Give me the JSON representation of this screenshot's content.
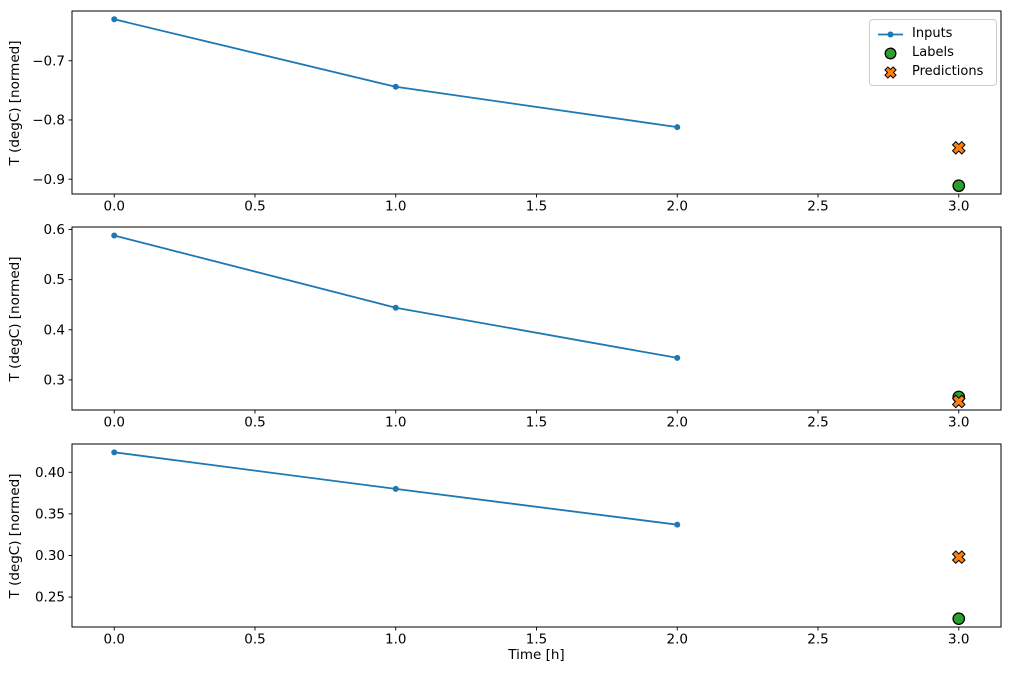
{
  "figure": {
    "background": "#ffffff",
    "xlabel": "Time [h]",
    "ylabel": "T (degC) [normed]",
    "xticks": [
      0.0,
      0.5,
      1.0,
      1.5,
      2.0,
      2.5,
      3.0
    ],
    "xticklabels": [
      "0.0",
      "0.5",
      "1.0",
      "1.5",
      "2.0",
      "2.5",
      "3.0"
    ],
    "colors": {
      "inputs": "#1f77b4",
      "labels": "#2ca02c",
      "predictions": "#ff7f0e",
      "marker_edge": "#000000",
      "legend_border": "#cccccc",
      "spine": "#000000"
    }
  },
  "legend": {
    "entries": [
      {
        "label": "Inputs",
        "marker": "line-dot",
        "color": "#1f77b4"
      },
      {
        "label": "Labels",
        "marker": "circle",
        "color": "#2ca02c"
      },
      {
        "label": "Predictions",
        "marker": "x",
        "color": "#ff7f0e"
      }
    ]
  },
  "chart_data": [
    {
      "type": "line",
      "title": "",
      "xlabel": "",
      "ylabel": "T (degC) [normed]",
      "xlim": [
        -0.15,
        3.15
      ],
      "ylim": [
        -0.925,
        -0.616
      ],
      "yticks": [
        -0.7,
        -0.8,
        -0.9
      ],
      "yticklabels": [
        "−0.7",
        "−0.8",
        "−0.9"
      ],
      "legend_visible": true,
      "series": [
        {
          "name": "Inputs",
          "style": "line-dot",
          "color": "#1f77b4",
          "x": [
            0,
            1,
            2
          ],
          "y": [
            -0.63,
            -0.744,
            -0.812
          ]
        },
        {
          "name": "Labels",
          "style": "circle",
          "color": "#2ca02c",
          "x": [
            3
          ],
          "y": [
            -0.911
          ]
        },
        {
          "name": "Predictions",
          "style": "x",
          "color": "#ff7f0e",
          "x": [
            3
          ],
          "y": [
            -0.847
          ]
        }
      ]
    },
    {
      "type": "line",
      "title": "",
      "xlabel": "",
      "ylabel": "T (degC) [normed]",
      "xlim": [
        -0.15,
        3.15
      ],
      "ylim": [
        0.24,
        0.605
      ],
      "yticks": [
        0.3,
        0.4,
        0.5,
        0.6
      ],
      "yticklabels": [
        "0.3",
        "0.4",
        "0.5",
        "0.6"
      ],
      "legend_visible": false,
      "series": [
        {
          "name": "Inputs",
          "style": "line-dot",
          "color": "#1f77b4",
          "x": [
            0,
            1,
            2
          ],
          "y": [
            0.588,
            0.444,
            0.344
          ]
        },
        {
          "name": "Labels",
          "style": "circle",
          "color": "#2ca02c",
          "x": [
            3
          ],
          "y": [
            0.266
          ]
        },
        {
          "name": "Predictions",
          "style": "x",
          "color": "#ff7f0e",
          "x": [
            3
          ],
          "y": [
            0.257
          ]
        }
      ]
    },
    {
      "type": "line",
      "title": "",
      "xlabel": "Time [h]",
      "ylabel": "T (degC) [normed]",
      "xlim": [
        -0.15,
        3.15
      ],
      "ylim": [
        0.214,
        0.434
      ],
      "yticks": [
        0.25,
        0.3,
        0.35,
        0.4
      ],
      "yticklabels": [
        "0.25",
        "0.30",
        "0.35",
        "0.40"
      ],
      "legend_visible": false,
      "series": [
        {
          "name": "Inputs",
          "style": "line-dot",
          "color": "#1f77b4",
          "x": [
            0,
            1,
            2
          ],
          "y": [
            0.424,
            0.38,
            0.337
          ]
        },
        {
          "name": "Labels",
          "style": "circle",
          "color": "#2ca02c",
          "x": [
            3
          ],
          "y": [
            0.224
          ]
        },
        {
          "name": "Predictions",
          "style": "x",
          "color": "#ff7f0e",
          "x": [
            3
          ],
          "y": [
            0.298
          ]
        }
      ]
    }
  ]
}
